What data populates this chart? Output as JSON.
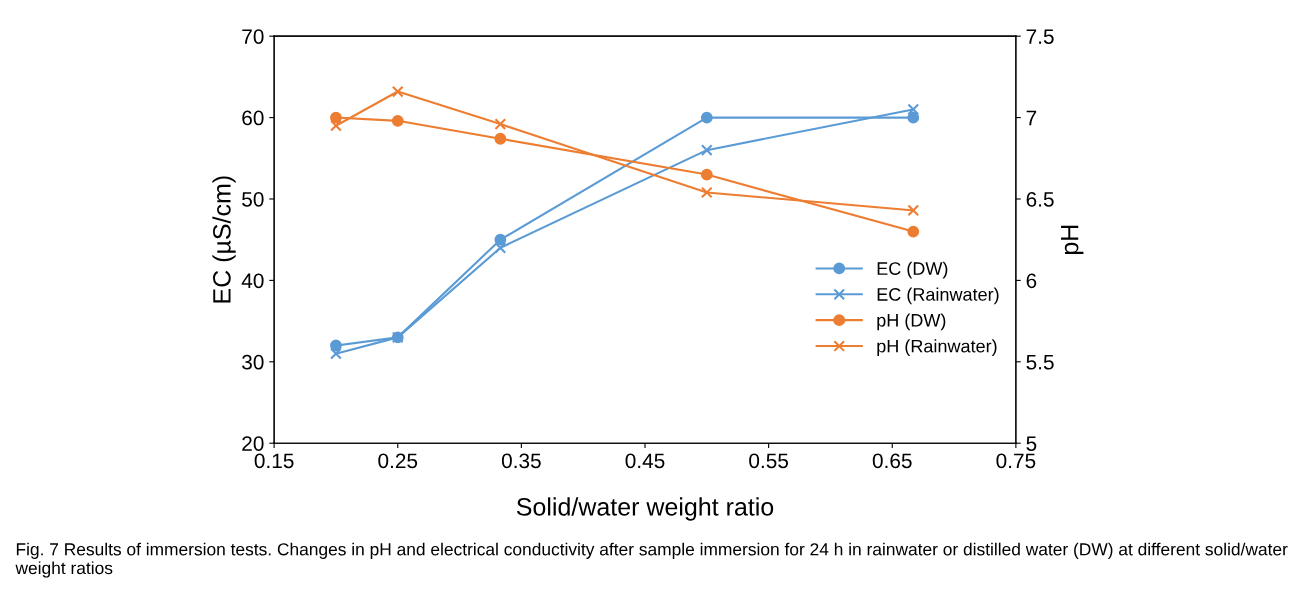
{
  "chart_data": {
    "type": "line",
    "xlabel": "Solid/water weight ratio",
    "ylabel": "EC (µS/cm)",
    "y2label": "pH",
    "x": [
      0.2,
      0.25,
      0.333,
      0.5,
      0.667
    ],
    "series": [
      {
        "name": "EC (DW)",
        "color": "#5b9bd5",
        "marker": "circle",
        "values": [
          32,
          33,
          45,
          60,
          60
        ]
      },
      {
        "name": "EC (Rainwater)",
        "color": "#5b9bd5",
        "marker": "cross",
        "values": [
          31,
          33,
          44,
          56,
          61
        ]
      },
      {
        "name": "pH (DW)",
        "color": "#ed7d31",
        "marker": "circle",
        "axis": "y2",
        "values": [
          7.0,
          6.98,
          6.87,
          6.65,
          6.3
        ]
      },
      {
        "name": "pH (Rainwater)",
        "color": "#ed7d31",
        "marker": "cross",
        "axis": "y2",
        "values": [
          6.95,
          7.16,
          6.96,
          6.54,
          6.43
        ]
      }
    ],
    "xlim": [
      0.15,
      0.75
    ],
    "xticks": [
      {
        "value": 0.15,
        "label": "0.15"
      },
      {
        "value": 0.25,
        "label": "0.25"
      },
      {
        "value": 0.35,
        "label": "0.35"
      },
      {
        "value": 0.45,
        "label": "0.45"
      },
      {
        "value": 0.55,
        "label": "0.55"
      },
      {
        "value": 0.65,
        "label": "0.65"
      },
      {
        "value": 0.75,
        "label": "0.75"
      }
    ],
    "ylim": [
      20,
      70
    ],
    "yticks": [
      20,
      30,
      40,
      50,
      60,
      70
    ],
    "y2lim": [
      5,
      7.5
    ],
    "y2ticks": [
      5,
      {
        "value": 5.5,
        "label": "5.5"
      },
      6,
      {
        "value": 6.5,
        "label": "6.5"
      },
      7,
      {
        "value": 7.5,
        "label": "7.5"
      }
    ],
    "legend": "right",
    "grid": false,
    "annotations": [
      "Fig. 7 Results of immersion tests. Changes in pH and electrical conductivity after sample immersion for 24 h in rainwater or distilled water (DW) at different solid/water weight ratios"
    ]
  }
}
